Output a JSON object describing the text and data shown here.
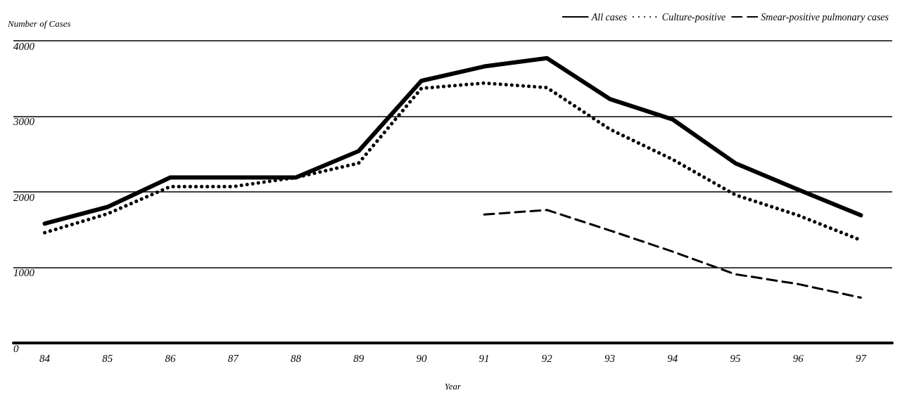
{
  "chart_data": {
    "type": "line",
    "ylabel": "Number of Cases",
    "xlabel": "Year",
    "categories": [
      "84",
      "85",
      "86",
      "87",
      "88",
      "89",
      "90",
      "91",
      "92",
      "93",
      "94",
      "95",
      "96",
      "97"
    ],
    "series": [
      {
        "name": "All cases",
        "color": "#000000",
        "line_style": "solid",
        "values": [
          1580,
          1800,
          2190,
          2190,
          2190,
          2540,
          3470,
          3660,
          3770,
          3230,
          2960,
          2380,
          2030,
          1690
        ]
      },
      {
        "name": "Culture-positive",
        "color": "#000000",
        "line_style": "dotted",
        "values": [
          1460,
          1710,
          2070,
          2070,
          2190,
          2380,
          3370,
          3440,
          3380,
          2830,
          2430,
          1960,
          1690,
          1360
        ]
      },
      {
        "name": "Smear-positive pulmonary cases",
        "color": "#000000",
        "line_style": "dashed",
        "values": [
          null,
          null,
          null,
          null,
          null,
          null,
          null,
          1700,
          1760,
          1490,
          1210,
          910,
          780,
          600
        ]
      }
    ],
    "ylim": [
      0,
      4000
    ],
    "yticks": [
      0,
      1000,
      2000,
      3000,
      4000
    ],
    "grid": "y",
    "legend": "top right",
    "marker": "none"
  }
}
